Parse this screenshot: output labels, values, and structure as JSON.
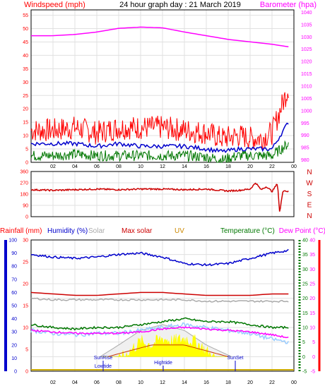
{
  "colors": {
    "wind": "#ff0000",
    "wind_avg": "#0000cc",
    "wind_dir": "#cc0000",
    "gust": "#007700",
    "barometer": "#ff00ff",
    "rain": "#ff0000",
    "humidity": "#0000cc",
    "solar": "#aaaaaa",
    "max_solar": "#cc0000",
    "uv": "#cc8800",
    "temperature": "#007700",
    "dewpoint": "#ff00ff",
    "chill": "#99ccff",
    "sun_fill": "#ffff00",
    "tide": "#cc3300",
    "grid": "#e0e0e0",
    "axis": "#000000"
  },
  "chart_data": [
    {
      "type": "line",
      "title": "24 hour graph day : 21 March 2019",
      "ylabel_left": "Windspeed (mph)",
      "ylabel_right": "Barometer (hpa)",
      "x_ticks": [
        "02",
        "04",
        "06",
        "08",
        "10",
        "12",
        "14",
        "16",
        "18",
        "20",
        "22",
        "00"
      ],
      "y_left_ticks": [
        "0",
        "5",
        "10",
        "15",
        "20",
        "25",
        "30",
        "35",
        "40",
        "45",
        "50",
        "55"
      ],
      "y_right_ticks": [
        "980",
        "985",
        "990",
        "995",
        "1000",
        "1005",
        "1010",
        "1015",
        "1020",
        "1025",
        "1030",
        "1035",
        "1040"
      ],
      "ylim_left": [
        0,
        57
      ],
      "ylim_right": [
        979,
        1041
      ],
      "series": [
        {
          "axis": "right",
          "x": [
            0,
            2,
            4,
            6,
            8,
            10,
            12,
            14,
            16,
            18,
            20,
            22,
            23.5
          ],
          "values": [
            1030.5,
            1030.5,
            1031,
            1032,
            1033.5,
            1034,
            1033.7,
            1032,
            1030.5,
            1029,
            1028,
            1027,
            1026
          ]
        },
        {
          "axis": "left",
          "x": [
            0,
            2,
            4,
            6,
            8,
            10,
            12,
            14,
            16,
            17.5,
            19,
            20,
            21,
            22,
            23.5
          ],
          "values": [
            12,
            12,
            13,
            11,
            13,
            13,
            13,
            12,
            11,
            9,
            10,
            9,
            9,
            11,
            28
          ]
        },
        {
          "axis": "left",
          "x": [
            0,
            2,
            4,
            6,
            8,
            10,
            12,
            14,
            16,
            17.5,
            19,
            20,
            21,
            22,
            23.5
          ],
          "values": [
            7,
            7,
            7,
            6,
            7,
            6,
            6,
            6,
            5,
            4,
            5,
            5,
            5,
            5,
            15
          ]
        },
        {
          "axis": "left",
          "x": [
            0,
            2,
            4,
            6,
            8,
            10,
            12,
            14,
            16,
            17.5,
            19,
            20,
            21,
            22,
            23.5
          ],
          "values": [
            2.5,
            2.5,
            3,
            2.5,
            2.5,
            2.5,
            2.5,
            2.5,
            2,
            1,
            2.5,
            2.5,
            2.5,
            2.5,
            7
          ]
        }
      ]
    },
    {
      "type": "line",
      "y_ticks": [
        "0",
        "90",
        "180",
        "270",
        "360"
      ],
      "compass_labels": [
        "N",
        "W",
        "S",
        "E",
        "N"
      ],
      "ylim": [
        0,
        360
      ],
      "series": [
        {
          "x": [
            0,
            2,
            4,
            6,
            8,
            10,
            12,
            14,
            16,
            18,
            19,
            20,
            20.5,
            21,
            21.5,
            22,
            22.5,
            22.7,
            23,
            23.5
          ],
          "values": [
            215,
            210,
            215,
            220,
            215,
            220,
            220,
            215,
            220,
            205,
            210,
            220,
            270,
            215,
            240,
            200,
            265,
            30,
            210,
            200
          ]
        }
      ]
    },
    {
      "type": "line",
      "legend": [
        "Rainfall (mm)",
        "Humidity (%)",
        "Solar",
        "Max solar",
        "UV",
        "Temperature (°C)",
        "Dew Point (°C)"
      ],
      "y_left_outer_ticks": [
        "0",
        "10",
        "20",
        "30",
        "40",
        "50",
        "60",
        "70",
        "80",
        "90",
        "100"
      ],
      "y_left_inner_ticks": [
        "0",
        "5",
        "10",
        "15",
        "20",
        "25",
        "30"
      ],
      "y_right_inner_ticks": [
        "-5",
        "0",
        "5",
        "10",
        "15",
        "20",
        "25",
        "30",
        "35",
        "40"
      ],
      "y_right_outer_ticks": [
        "-5",
        "0",
        "5",
        "10",
        "15",
        "20",
        "25",
        "30",
        "35",
        "40"
      ],
      "ylim_humidity": [
        0,
        100
      ],
      "ylim_temperature": [
        -5,
        40
      ],
      "markers": [
        "SunRise",
        "SunSet",
        "Lowtide",
        "Hightide"
      ],
      "x_tick_labels": [
        "02",
        "04",
        "06",
        "08",
        "10",
        "12",
        "14",
        "16",
        "18",
        "20",
        "22",
        "00"
      ],
      "series": [
        {
          "name": "Humidity (%)",
          "axis": "humidity",
          "x": [
            0,
            2,
            4,
            6,
            8,
            10,
            12,
            14,
            16,
            18,
            20,
            22,
            23.5
          ],
          "values": [
            89,
            87,
            86,
            87,
            89,
            90,
            87,
            82,
            81,
            82,
            86,
            90,
            92
          ]
        },
        {
          "axis": "temperature",
          "x": [
            0,
            2,
            4,
            6,
            8,
            10,
            12,
            14,
            16,
            18,
            20,
            22,
            23.5
          ],
          "values": [
            22,
            21.5,
            21,
            21,
            21.5,
            22,
            22,
            21.5,
            21,
            21,
            21,
            21.5,
            21.5
          ]
        },
        {
          "axis": "temperature",
          "x": [
            0,
            2,
            4,
            6,
            8,
            10,
            12,
            14,
            16,
            18,
            20,
            22,
            23.5
          ],
          "values": [
            20,
            19.5,
            19.5,
            19.5,
            19.5,
            19.5,
            19.5,
            19.5,
            19,
            19,
            19,
            19,
            19
          ]
        },
        {
          "name": "Temperature (°C)",
          "axis": "temperature",
          "x": [
            0,
            2,
            4,
            6,
            8,
            10,
            12,
            14,
            16,
            18,
            20,
            22,
            23.5
          ],
          "values": [
            11,
            10,
            9.5,
            10,
            10,
            11,
            12,
            13,
            12,
            12,
            11,
            10,
            10
          ]
        },
        {
          "axis": "temperature",
          "x": [
            0,
            2,
            4,
            6,
            8,
            10,
            12,
            14,
            16,
            18,
            20,
            22,
            23.5
          ],
          "values": [
            9,
            8,
            7.5,
            8,
            8,
            9,
            10,
            11,
            10,
            9,
            8,
            6,
            5
          ]
        },
        {
          "name": "Dew Point (°C)",
          "axis": "temperature",
          "x": [
            0,
            2,
            4,
            6,
            8,
            10,
            12,
            14,
            16,
            18,
            20,
            22,
            23.5
          ],
          "values": [
            9,
            8.5,
            8,
            8,
            8,
            8.5,
            9.5,
            10,
            9.5,
            9,
            8.5,
            7.5,
            6.5
          ]
        },
        {
          "name": "Max solar",
          "axis": "temperature",
          "x": [
            6.3,
            8,
            10,
            12,
            14,
            16,
            18.3
          ],
          "values": [
            0,
            4,
            9,
            11,
            9,
            4,
            0
          ]
        },
        {
          "name": "Solar",
          "axis": "temperature",
          "x": [
            6.5,
            7,
            8,
            9,
            10,
            11,
            12,
            13,
            14,
            15,
            16,
            17,
            18
          ],
          "values": [
            0,
            1,
            3,
            6,
            9,
            8,
            10,
            9,
            10,
            9,
            6,
            3,
            0
          ]
        },
        {
          "name": "UV",
          "axis": "temperature",
          "x": [
            7,
            8,
            9,
            10,
            11,
            12,
            13,
            14,
            15,
            16,
            17,
            18
          ],
          "values": [
            0,
            1,
            2,
            3,
            4,
            4,
            4,
            4,
            3,
            2,
            1,
            0
          ]
        }
      ]
    }
  ]
}
